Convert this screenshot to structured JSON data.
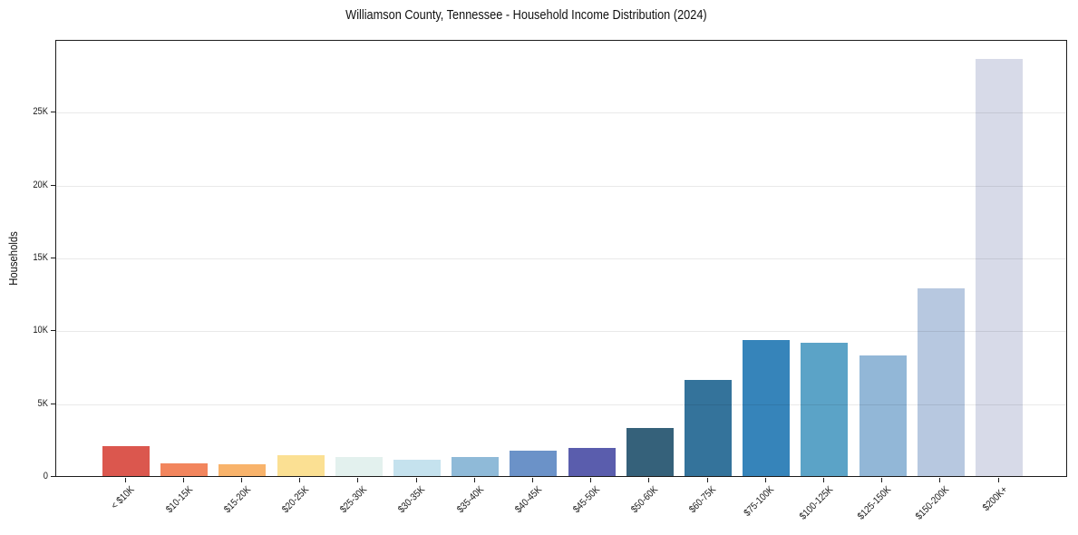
{
  "title": "Williamson County, Tennessee - Household Income Distribution (2024)",
  "chart_data": {
    "type": "bar",
    "title": "Williamson County, Tennessee - Household Income Distribution (2024)",
    "xlabel": "",
    "ylabel": "Households",
    "ylim": [
      0,
      30000
    ],
    "grid": "horizontal light gray lines at each 5K",
    "legend_position": "none",
    "x_label_rotation_deg": 45,
    "axis_color": "#1c1c1c",
    "background_color": "#ffffff",
    "yticks": [
      {
        "value": 0,
        "label": "0"
      },
      {
        "value": 5000,
        "label": "5K"
      },
      {
        "value": 10000,
        "label": "10K"
      },
      {
        "value": 15000,
        "label": "15K"
      },
      {
        "value": 20000,
        "label": "20K"
      },
      {
        "value": 25000,
        "label": "25K"
      }
    ],
    "categories": [
      "< $10K",
      "$10-15K",
      "$15-20K",
      "$20-25K",
      "$25-30K",
      "$30-35K",
      "$35-40K",
      "$40-45K",
      "$45-50K",
      "$50-60K",
      "$60-75K",
      "$75-100K",
      "$100-125K",
      "$125-150K",
      "$150-200K",
      "$200K+"
    ],
    "values": [
      2050,
      900,
      800,
      1450,
      1300,
      1150,
      1280,
      1750,
      1950,
      3300,
      6600,
      9350,
      9150,
      8250,
      12900,
      28600
    ],
    "bar_colors": [
      "#db574e",
      "#f2855d",
      "#f8b36b",
      "#fbe093",
      "#e3f1ee",
      "#c5e2ee",
      "#8fbad8",
      "#6b92c8",
      "#5a5dad",
      "#35617a",
      "#34739b",
      "#3684ba",
      "#5ba3c7",
      "#92b7d7",
      "#b7c8e0",
      "#d7dae8"
    ]
  }
}
